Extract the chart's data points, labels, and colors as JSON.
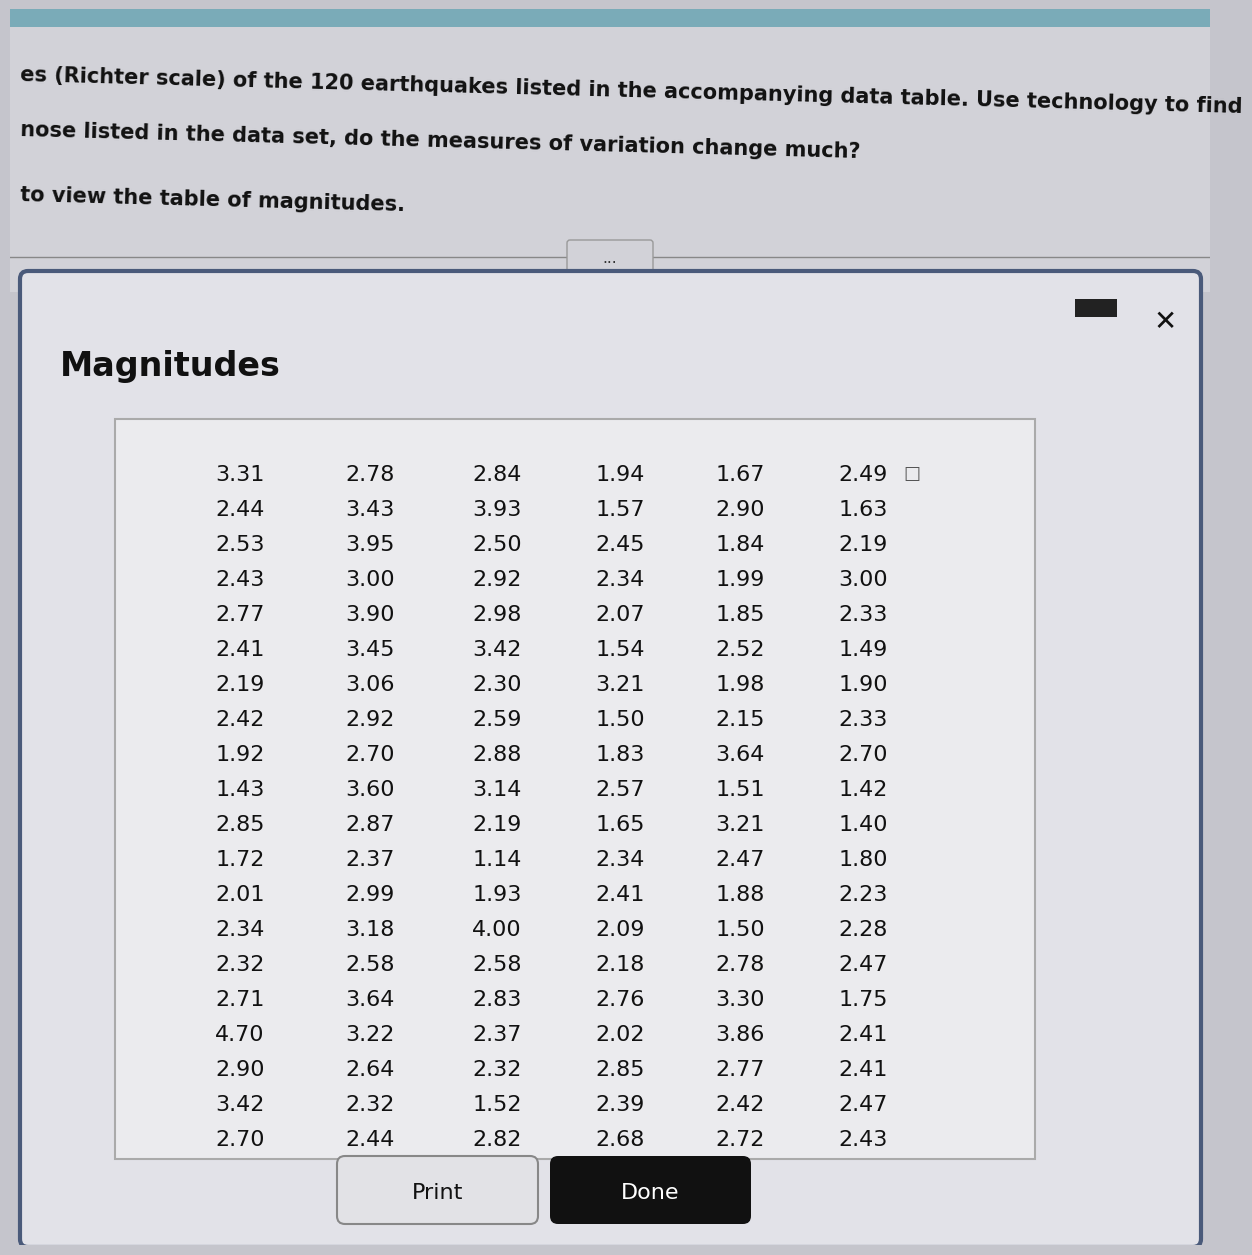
{
  "header_lines": [
    "es (Richter scale) of the 120 earthquakes listed in the accompanying data table. Use technology to find",
    "nose listed in the data set, do the measures of variation change much?",
    "to view the table of magnitudes."
  ],
  "dialog_title": "Magnitudes",
  "table_data": [
    [
      3.31,
      2.78,
      2.84,
      1.94,
      1.67,
      2.49
    ],
    [
      2.44,
      3.43,
      3.93,
      1.57,
      2.9,
      1.63
    ],
    [
      2.53,
      3.95,
      2.5,
      2.45,
      1.84,
      2.19
    ],
    [
      2.43,
      3.0,
      2.92,
      2.34,
      1.99,
      3.0
    ],
    [
      2.77,
      3.9,
      2.98,
      2.07,
      1.85,
      2.33
    ],
    [
      2.41,
      3.45,
      3.42,
      1.54,
      2.52,
      1.49
    ],
    [
      2.19,
      3.06,
      2.3,
      3.21,
      1.98,
      1.9
    ],
    [
      2.42,
      2.92,
      2.59,
      1.5,
      2.15,
      2.33
    ],
    [
      1.92,
      2.7,
      2.88,
      1.83,
      3.64,
      2.7
    ],
    [
      1.43,
      3.6,
      3.14,
      2.57,
      1.51,
      1.42
    ],
    [
      2.85,
      2.87,
      2.19,
      1.65,
      3.21,
      1.4
    ],
    [
      1.72,
      2.37,
      1.14,
      2.34,
      2.47,
      1.8
    ],
    [
      2.01,
      2.99,
      1.93,
      2.41,
      1.88,
      2.23
    ],
    [
      2.34,
      3.18,
      4.0,
      2.09,
      1.5,
      2.28
    ],
    [
      2.32,
      2.58,
      2.58,
      2.18,
      2.78,
      2.47
    ],
    [
      2.71,
      3.64,
      2.83,
      2.76,
      3.3,
      1.75
    ],
    [
      4.7,
      3.22,
      2.37,
      2.02,
      3.86,
      2.41
    ],
    [
      2.9,
      2.64,
      2.32,
      2.85,
      2.77,
      2.41
    ],
    [
      3.42,
      2.32,
      1.52,
      2.39,
      2.42,
      2.47
    ],
    [
      2.7,
      2.44,
      2.82,
      2.68,
      2.72,
      2.43
    ]
  ],
  "bg_color_outer": "#c5c5cc",
  "bg_color_header_top": "#b8c8d8",
  "bg_color_header_area": "#d2d2d8",
  "dialog_bg": "#e2e2e8",
  "table_bg": "#ebebee",
  "button_print_bg": "#e2e2e6",
  "button_done_bg": "#111111",
  "button_print_text": "Print",
  "button_done_text": "Done",
  "title_fontsize": 24,
  "header_fontsize": 15,
  "table_fontsize": 16
}
